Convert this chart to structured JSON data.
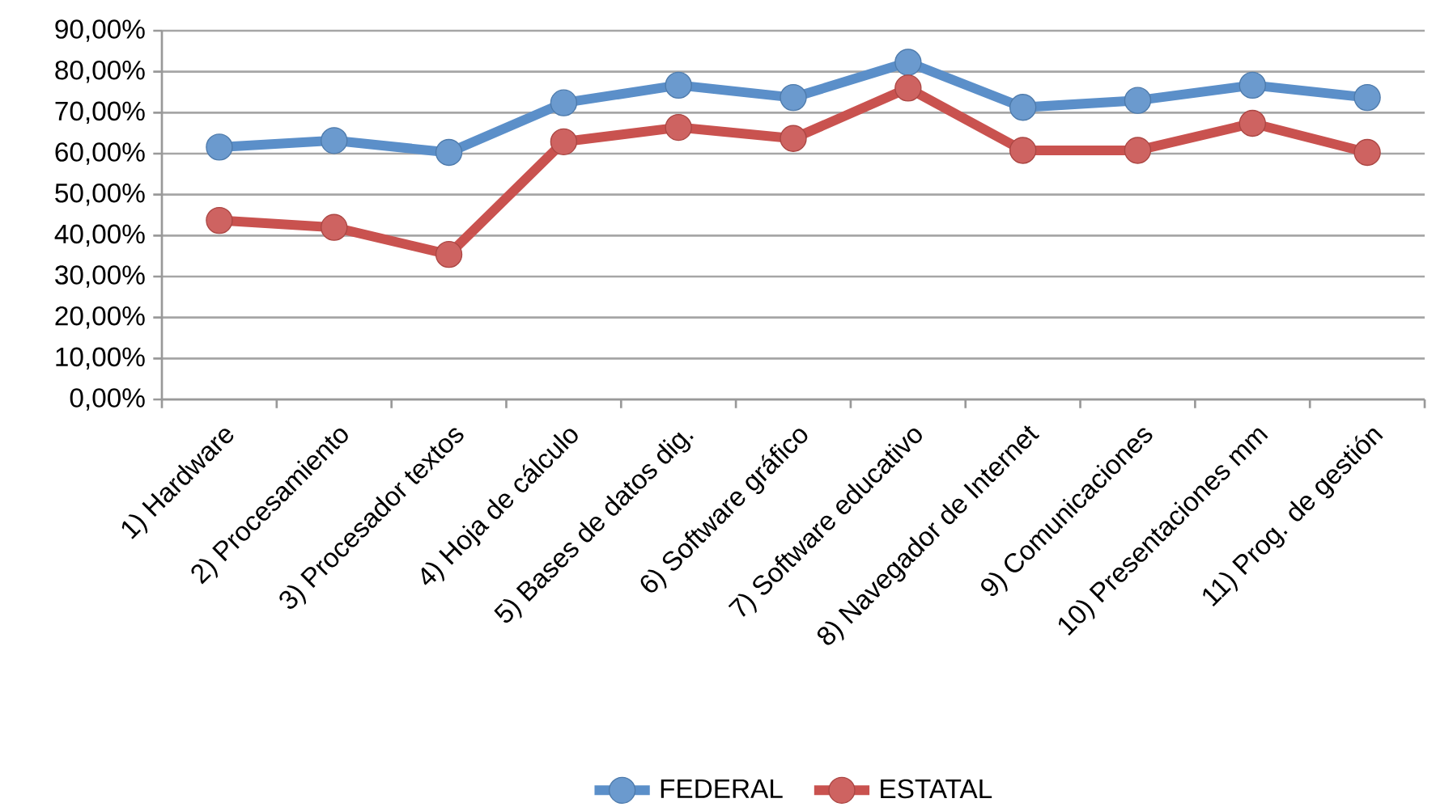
{
  "chart_data": {
    "type": "line",
    "categories": [
      "1) Hardware",
      "2) Procesamiento",
      "3) Procesador textos",
      "4) Hoja de cálculo",
      "5) Bases de datos dig.",
      "6) Software gráfico",
      "7) Software educativo",
      "8) Navegador de Internet",
      "9) Comunicaciones",
      "10) Presentaciones mm",
      "11) Prog. de gestión"
    ],
    "series": [
      {
        "name": "FEDERAL",
        "color": "#5b8fc9",
        "values": [
          61.6,
          63.2,
          60.3,
          72.4,
          76.7,
          73.7,
          82.3,
          71.3,
          73.0,
          76.7,
          73.7
        ]
      },
      {
        "name": "ESTATAL",
        "color": "#c9524f",
        "values": [
          43.7,
          42.0,
          35.4,
          62.9,
          66.4,
          63.7,
          76.0,
          60.8,
          60.8,
          67.4,
          60.3
        ]
      }
    ],
    "ylim": [
      0,
      90
    ],
    "yticks": [
      {
        "value": 0,
        "label": "0,00%"
      },
      {
        "value": 10,
        "label": "10,00%"
      },
      {
        "value": 20,
        "label": "20,00%"
      },
      {
        "value": 30,
        "label": "30,00%"
      },
      {
        "value": 40,
        "label": "40,00%"
      },
      {
        "value": 50,
        "label": "50,00%"
      },
      {
        "value": 60,
        "label": "60,00%"
      },
      {
        "value": 70,
        "label": "70,00%"
      },
      {
        "value": 80,
        "label": "80,00%"
      },
      {
        "value": 90,
        "label": "90,00%"
      }
    ],
    "grid": "y",
    "legend": "bottom",
    "marker": "circle",
    "line_style": "solid"
  }
}
